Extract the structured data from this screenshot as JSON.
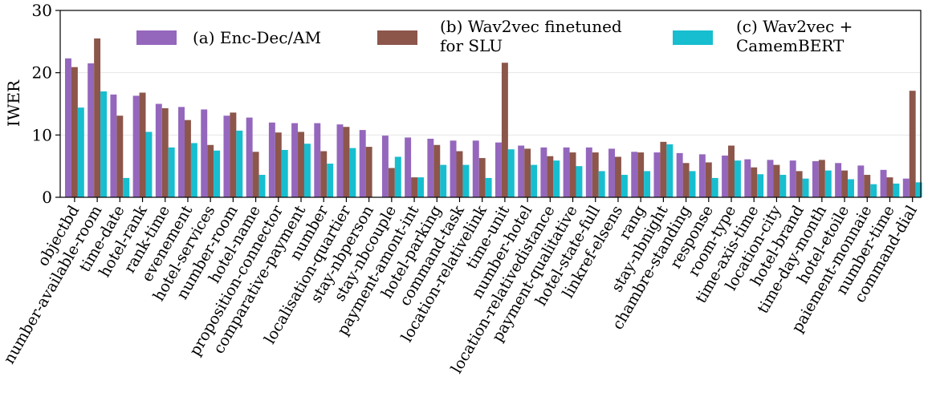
{
  "chart_data": {
    "type": "bar",
    "title": "",
    "xlabel": "",
    "ylabel": "IWER",
    "ylim": [
      0,
      30
    ],
    "yticks": [
      0,
      10,
      20,
      30
    ],
    "grid": "horizontal",
    "legend_position": "top",
    "categories": [
      "objectbd",
      "number-available-room",
      "time-date",
      "hotel-rank",
      "rank-time",
      "evenement",
      "hotel-services",
      "number-room",
      "hotel-name",
      "proposition-connector",
      "comparative-payment",
      "number",
      "localisation-quartier",
      "stay-nbperson",
      "stay-nbcouple",
      "payment-amont-int",
      "hotel-parking",
      "command-task",
      "location-relativelink",
      "time-unit",
      "number-hotel",
      "location-relativedistance",
      "payment-qualitative",
      "hotel-state-full",
      "linkref-elsens",
      "rang",
      "stay-nbnight",
      "chambre-standing",
      "response",
      "room-type",
      "time-axis-time",
      "location-city",
      "hotel-brand",
      "time-day-month",
      "hotel-etoile",
      "paiement-monnaie",
      "number-time",
      "command-dial"
    ],
    "series": [
      {
        "name": "(a) Enc-Dec/AM",
        "color": "#9467bd",
        "values": [
          22.3,
          21.5,
          16.5,
          16.3,
          15.0,
          14.5,
          14.1,
          13.1,
          12.8,
          12.0,
          11.9,
          11.9,
          11.7,
          10.8,
          9.9,
          9.6,
          9.4,
          9.1,
          9.1,
          8.8,
          8.3,
          8.0,
          8.0,
          8.0,
          7.8,
          7.3,
          7.2,
          7.1,
          6.9,
          6.7,
          6.1,
          6.0,
          5.9,
          5.8,
          5.5,
          5.1,
          4.4,
          3.0
        ]
      },
      {
        "name": "(b) Wav2vec finetuned for SLU",
        "color": "#8c564b",
        "values": [
          20.9,
          25.5,
          13.1,
          16.8,
          14.3,
          12.4,
          8.4,
          13.6,
          7.3,
          10.4,
          10.5,
          7.4,
          11.3,
          8.1,
          4.7,
          3.2,
          8.4,
          7.4,
          6.3,
          21.6,
          7.8,
          6.6,
          7.2,
          7.2,
          6.5,
          7.2,
          8.9,
          5.5,
          5.6,
          8.3,
          4.8,
          5.2,
          4.2,
          6.0,
          4.3,
          3.6,
          3.2,
          17.1
        ]
      },
      {
        "name": "(c) Wav2vec + CamemBERT",
        "color": "#17becf",
        "values": [
          14.4,
          17.0,
          3.1,
          10.5,
          8.0,
          8.7,
          7.5,
          10.7,
          3.6,
          7.6,
          8.6,
          5.4,
          7.9,
          0,
          6.5,
          3.2,
          5.2,
          5.2,
          3.1,
          7.7,
          5.2,
          5.9,
          5.0,
          4.2,
          3.6,
          4.2,
          8.5,
          4.2,
          3.1,
          5.9,
          3.7,
          3.6,
          3.0,
          4.3,
          2.9,
          2.1,
          2.2,
          2.4
        ]
      }
    ]
  },
  "legend": {
    "a_line1": "(a) Enc-Dec/AM",
    "b_line1": "(b) Wav2vec finetuned",
    "b_line2": "for SLU",
    "c_line1": "(c) Wav2vec +",
    "c_line2": "CamemBERT"
  }
}
